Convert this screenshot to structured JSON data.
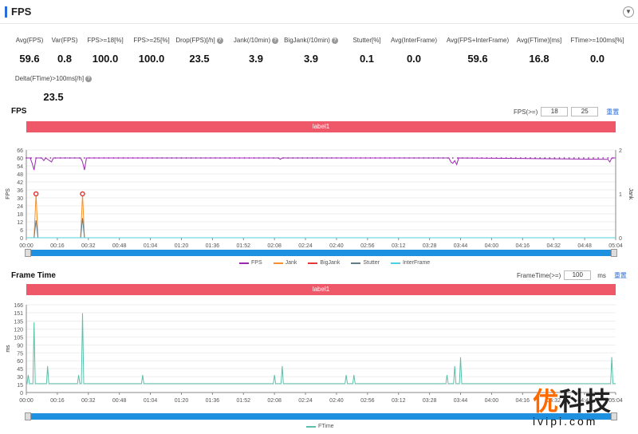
{
  "header": {
    "title": "FPS"
  },
  "stats": [
    {
      "label": "Avg(FPS)",
      "value": "59.6",
      "help": false
    },
    {
      "label": "Var(FPS)",
      "value": "0.8",
      "help": false
    },
    {
      "label": "FPS>=18[%]",
      "value": "100.0",
      "help": false
    },
    {
      "label": "FPS>=25[%]",
      "value": "100.0",
      "help": false
    },
    {
      "label": "Drop(FPS)[/h]",
      "value": "23.5",
      "help": true
    },
    {
      "label": "Jank(/10min)",
      "value": "3.9",
      "help": true
    },
    {
      "label": "BigJank(/10min)",
      "value": "3.9",
      "help": true
    },
    {
      "label": "Stutter[%]",
      "value": "0.1",
      "help": false
    },
    {
      "label": "Avg(InterFrame)",
      "value": "0.0",
      "help": false
    },
    {
      "label": "Avg(FPS+InterFrame)",
      "value": "59.6",
      "help": false
    },
    {
      "label": "Avg(FTime)[ms]",
      "value": "16.8",
      "help": false
    },
    {
      "label": "FTime>=100ms[%]",
      "value": "0.0",
      "help": false
    },
    {
      "label": "Delta(FTime)>100ms[/h]",
      "value": "23.5",
      "help": true
    }
  ],
  "fps_section": {
    "title": "FPS",
    "threshold_label": "FPS(>=)",
    "threshold_1": "18",
    "threshold_2": "25",
    "reset": "重置",
    "label_bar": "label1",
    "legend": [
      "FPS",
      "Jank",
      "BigJank",
      "Stutter",
      "InterFrame"
    ]
  },
  "ft_section": {
    "title": "Frame Time",
    "threshold_label": "FrameTime(>=)",
    "threshold": "100",
    "unit": "ms",
    "reset": "重置",
    "label_bar": "label1",
    "legend": [
      "FTime"
    ]
  },
  "colors": {
    "fps": "#9c27b0",
    "jank": "#f5902c",
    "bigjank": "#e53935",
    "stutter": "#607d8b",
    "interframe": "#4dd0e1",
    "ftime": "#5bbfa9",
    "labelbar": "#ee5869"
  },
  "watermark": {
    "cn_first": "优",
    "cn_rest": "科技",
    "en": "ivipi.com"
  },
  "chart_data": [
    {
      "type": "line",
      "name": "FPS",
      "xlabel": "",
      "ylabel": "FPS",
      "y2label": "Jank",
      "ylim": [
        0,
        66
      ],
      "yticks": [
        0,
        6,
        12,
        18,
        24,
        30,
        36,
        42,
        48,
        54,
        60,
        66
      ],
      "y2lim": [
        0,
        2
      ],
      "y2ticks": [
        0,
        1,
        2
      ],
      "xlim": [
        0,
        304
      ],
      "xticks": [
        "00:00",
        "00:16",
        "00:32",
        "00:48",
        "01:04",
        "01:20",
        "01:36",
        "01:52",
        "02:08",
        "02:24",
        "02:40",
        "02:56",
        "03:12",
        "03:28",
        "03:44",
        "04:00",
        "04:16",
        "04:32",
        "04:48",
        "05:04"
      ],
      "series": [
        {
          "name": "FPS",
          "points": [
            [
              0,
              60
            ],
            [
              2,
              60
            ],
            [
              3,
              56
            ],
            [
              4,
              51
            ],
            [
              5,
              60
            ],
            [
              8,
              60
            ],
            [
              9,
              58
            ],
            [
              10,
              60
            ],
            [
              13,
              57
            ],
            [
              14,
              60
            ],
            [
              28,
              60
            ],
            [
              29,
              57
            ],
            [
              30,
              51
            ],
            [
              31,
              60
            ],
            [
              40,
              60
            ],
            [
              130,
              60
            ],
            [
              131,
              59
            ],
            [
              132,
              60
            ],
            [
              218,
              60
            ],
            [
              219,
              57
            ],
            [
              220,
              56
            ],
            [
              221,
              58
            ],
            [
              222,
              55
            ],
            [
              223,
              60
            ],
            [
              304,
              60
            ],
            [
              300,
              59
            ],
            [
              301,
              57
            ],
            [
              302,
              60
            ]
          ]
        },
        {
          "name": "Jank",
          "points": [
            [
              4,
              0
            ],
            [
              5,
              1
            ],
            [
              6,
              0
            ],
            [
              28,
              0
            ],
            [
              29,
              1
            ],
            [
              30,
              0
            ]
          ]
        },
        {
          "name": "BigJank",
          "points": [
            [
              5,
              1
            ],
            [
              29,
              1
            ]
          ]
        },
        {
          "name": "Stutter",
          "points": [
            [
              4,
              0
            ],
            [
              5,
              0.4
            ],
            [
              6,
              0
            ],
            [
              28,
              0
            ],
            [
              29,
              0.45
            ],
            [
              30,
              0
            ]
          ]
        },
        {
          "name": "InterFrame",
          "points": [
            [
              0,
              0
            ],
            [
              304,
              0
            ]
          ]
        }
      ]
    },
    {
      "type": "line",
      "name": "FTime",
      "xlabel": "",
      "ylabel": "ms",
      "ylim": [
        0,
        166
      ],
      "yticks": [
        0,
        15,
        30,
        45,
        60,
        75,
        90,
        105,
        120,
        135,
        151,
        166
      ],
      "xlim": [
        0,
        304
      ],
      "xticks": [
        "00:00",
        "00:16",
        "00:32",
        "00:48",
        "01:04",
        "01:20",
        "01:36",
        "01:52",
        "02:08",
        "02:24",
        "02:40",
        "02:56",
        "03:12",
        "03:28",
        "03:44",
        "04:00",
        "04:16",
        "04:32",
        "04:48",
        "05:04"
      ],
      "series": [
        {
          "name": "FTime",
          "baseline": 16.7,
          "spikes": [
            [
              1,
              33
            ],
            [
              4,
              133
            ],
            [
              11,
              50
            ],
            [
              27,
              33
            ],
            [
              29,
              150
            ],
            [
              60,
              33
            ],
            [
              128,
              33
            ],
            [
              132,
              50
            ],
            [
              165,
              33
            ],
            [
              169,
              33
            ],
            [
              217,
              33
            ],
            [
              221,
              50
            ],
            [
              224,
              67
            ],
            [
              302,
              67
            ]
          ]
        }
      ]
    }
  ]
}
